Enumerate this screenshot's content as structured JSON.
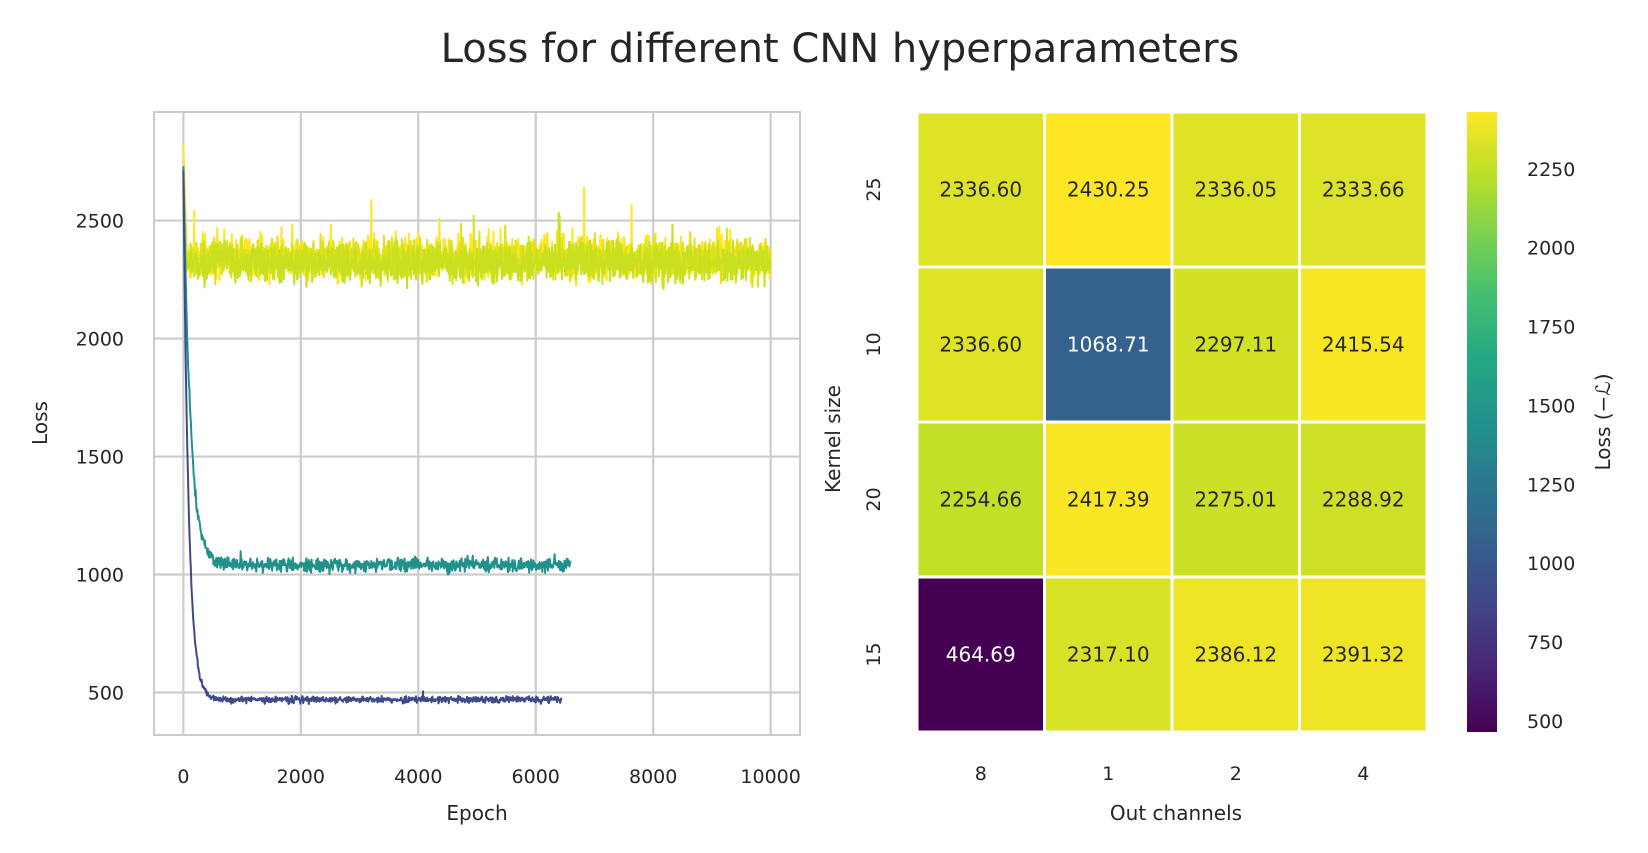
{
  "figure": {
    "title": "Loss for different CNN hyperparameters"
  },
  "chart_data": [
    {
      "type": "line",
      "xlabel": "Epoch",
      "ylabel": "Loss",
      "xlim": [
        -500,
        10500
      ],
      "ylim": [
        320,
        2960
      ],
      "xticks": [
        0,
        2000,
        4000,
        6000,
        8000,
        10000
      ],
      "yticks": [
        500,
        1000,
        1500,
        2000,
        2500
      ],
      "grid": true,
      "colormap": "viridis",
      "series": [
        {
          "color": "#fde725",
          "epochs": 10000,
          "start": 2820,
          "plateau": 2345,
          "noise": 95
        },
        {
          "color": "#dde318",
          "epochs": 10000,
          "start": 2700,
          "plateau": 2335,
          "noise": 85
        },
        {
          "color": "#c8e020",
          "epochs": 10000,
          "start": 2650,
          "plateau": 2320,
          "noise": 80
        },
        {
          "color": "#21918c",
          "epochs": 6600,
          "start": 2730,
          "plateau": 1040,
          "noise": 28,
          "tau": 120
        },
        {
          "color": "#3e4a89",
          "epochs": 6450,
          "start": 2710,
          "plateau": 470,
          "noise": 14,
          "tau": 90
        }
      ]
    },
    {
      "type": "heatmap",
      "xlabel": "Out channels",
      "ylabel": "Kernel size",
      "x_categories": [
        "8",
        "1",
        "2",
        "4"
      ],
      "y_categories": [
        "25",
        "10",
        "20",
        "15"
      ],
      "values": [
        [
          2336.6,
          2430.25,
          2336.05,
          2333.66
        ],
        [
          2336.6,
          1068.71,
          2297.11,
          2415.54
        ],
        [
          2254.66,
          2417.39,
          2275.01,
          2288.92
        ],
        [
          464.69,
          2317.1,
          2386.12,
          2391.32
        ]
      ],
      "labels": [
        [
          "2336.60",
          "2430.25",
          "2336.05",
          "2333.66"
        ],
        [
          "2336.60",
          "1068.71",
          "2297.11",
          "2415.54"
        ],
        [
          "2254.66",
          "2417.39",
          "2275.01",
          "2288.92"
        ],
        [
          "464.69",
          "2317.10",
          "2386.12",
          "2391.32"
        ]
      ],
      "vmin": 464.69,
      "vmax": 2430.25,
      "colormap": "viridis",
      "colorbar": {
        "label": "Loss (−ℒ)",
        "ticks": [
          500,
          750,
          1000,
          1250,
          1500,
          1750,
          2000,
          2250
        ]
      }
    }
  ]
}
